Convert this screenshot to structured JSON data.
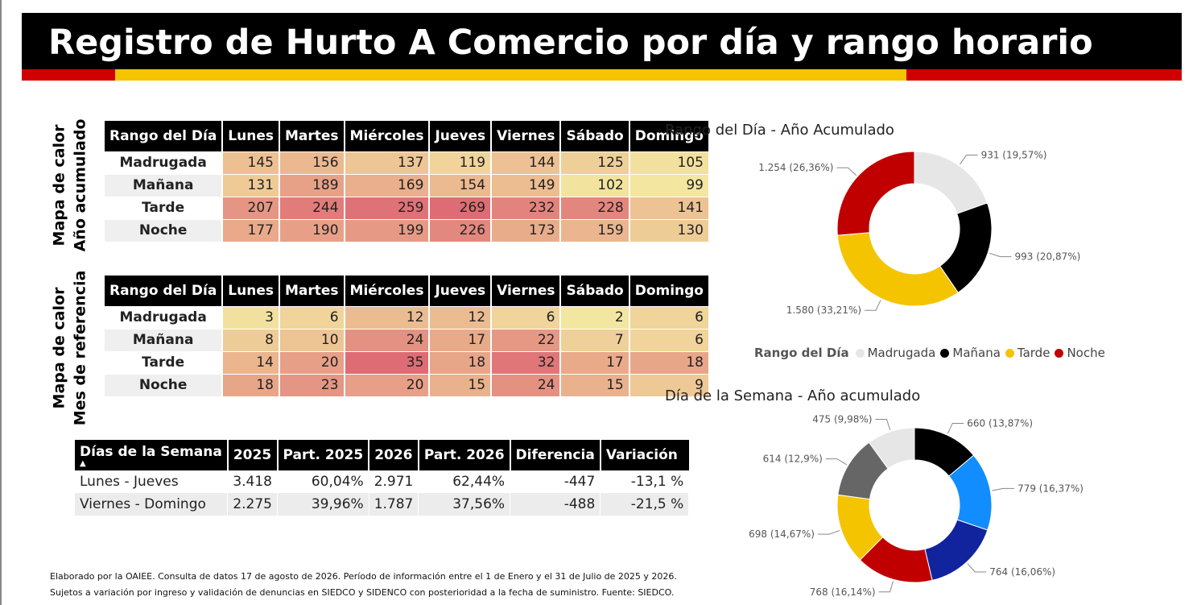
{
  "title": "Registro de Hurto A Comercio por día y rango horario",
  "heatmap_acumulado": {
    "side_label_line1": "Mapa de calor",
    "side_label_line2": "Año acumulado",
    "header": [
      "Rango del Día",
      "Lunes",
      "Martes",
      "Miércoles",
      "Jueves",
      "Viernes",
      "Sábado",
      "Domingo"
    ],
    "rows": [
      {
        "label": "Madrugada",
        "values": [
          145,
          156,
          137,
          119,
          144,
          125,
          105
        ]
      },
      {
        "label": "Mañana",
        "values": [
          131,
          189,
          169,
          154,
          149,
          102,
          99
        ]
      },
      {
        "label": "Tarde",
        "values": [
          207,
          244,
          259,
          269,
          232,
          228,
          141
        ]
      },
      {
        "label": "Noche",
        "values": [
          177,
          190,
          199,
          226,
          173,
          159,
          130
        ]
      }
    ]
  },
  "heatmap_mes": {
    "side_label_line1": "Mapa de calor",
    "side_label_line2": "Mes de referencia",
    "header": [
      "Rango del Día",
      "Lunes",
      "Martes",
      "Miércoles",
      "Jueves",
      "Viernes",
      "Sábado",
      "Domingo"
    ],
    "rows": [
      {
        "label": "Madrugada",
        "values": [
          3,
          6,
          12,
          12,
          6,
          2,
          6
        ]
      },
      {
        "label": "Mañana",
        "values": [
          8,
          10,
          24,
          17,
          22,
          7,
          6
        ]
      },
      {
        "label": "Tarde",
        "values": [
          14,
          20,
          35,
          18,
          32,
          17,
          18
        ]
      },
      {
        "label": "Noche",
        "values": [
          18,
          23,
          20,
          15,
          24,
          15,
          9
        ]
      }
    ]
  },
  "summary": {
    "header": [
      "Días de la Semana",
      "2025",
      "Part. 2025",
      "2026",
      "Part. 2026",
      "Diferencia",
      "Variación"
    ],
    "rows": [
      [
        "Lunes - Jueves",
        "3.418",
        "60,04%",
        "2.971",
        "62,44%",
        "-447",
        "-13,1 %"
      ],
      [
        "Viernes - Domingo",
        "2.275",
        "39,96%",
        "1.787",
        "37,56%",
        "-488",
        "-21,5 %"
      ]
    ]
  },
  "colors": {
    "madrugada": "#e6e6e6",
    "manana": "#000000",
    "tarde": "#f5c400",
    "noche": "#c00000",
    "heat_low": "#f3e6a0",
    "heat_high": "#de6c74"
  },
  "chart_data": [
    {
      "type": "pie",
      "title": "Rango del Día - Año Acumulado",
      "legend_title": "Rango del Día",
      "legend_position": "bottom",
      "categories": [
        "Madrugada",
        "Mañana",
        "Tarde",
        "Noche"
      ],
      "values": [
        931,
        993,
        1580,
        1254
      ],
      "labels": [
        "931 (19,57%)",
        "993 (20,87%)",
        "1.580 (33,21%)",
        "1.254 (26,36%)"
      ],
      "colors": [
        "#e6e6e6",
        "#000000",
        "#f5c400",
        "#c00000"
      ]
    },
    {
      "type": "pie",
      "title": "Día de la Semana - Año acumulado",
      "values": [
        660,
        779,
        764,
        768,
        698,
        614,
        475
      ],
      "labels": [
        "660 (13,87%)",
        "779 (16,37%)",
        "764 (16,06%)",
        "768 (16,14%)",
        "698 (14,67%)",
        "614 (12,9%)",
        "475 (9,98%)"
      ],
      "colors": [
        "#000000",
        "#118dff",
        "#12239e",
        "#c00000",
        "#f5c400",
        "#666666",
        "#e6e6e6"
      ]
    }
  ],
  "footer": {
    "line1": "Elaborado por la OAIEE. Consulta de datos 17 de agosto de 2026. Período de información entre el 1 de Enero y el 31 de Julio de 2025 y 2026.",
    "line2": "Sujetos a variación por ingreso y validación de denuncias en SIEDCO y SIDENCO con posterioridad a la fecha de suministro. Fuente: SIEDCO."
  }
}
